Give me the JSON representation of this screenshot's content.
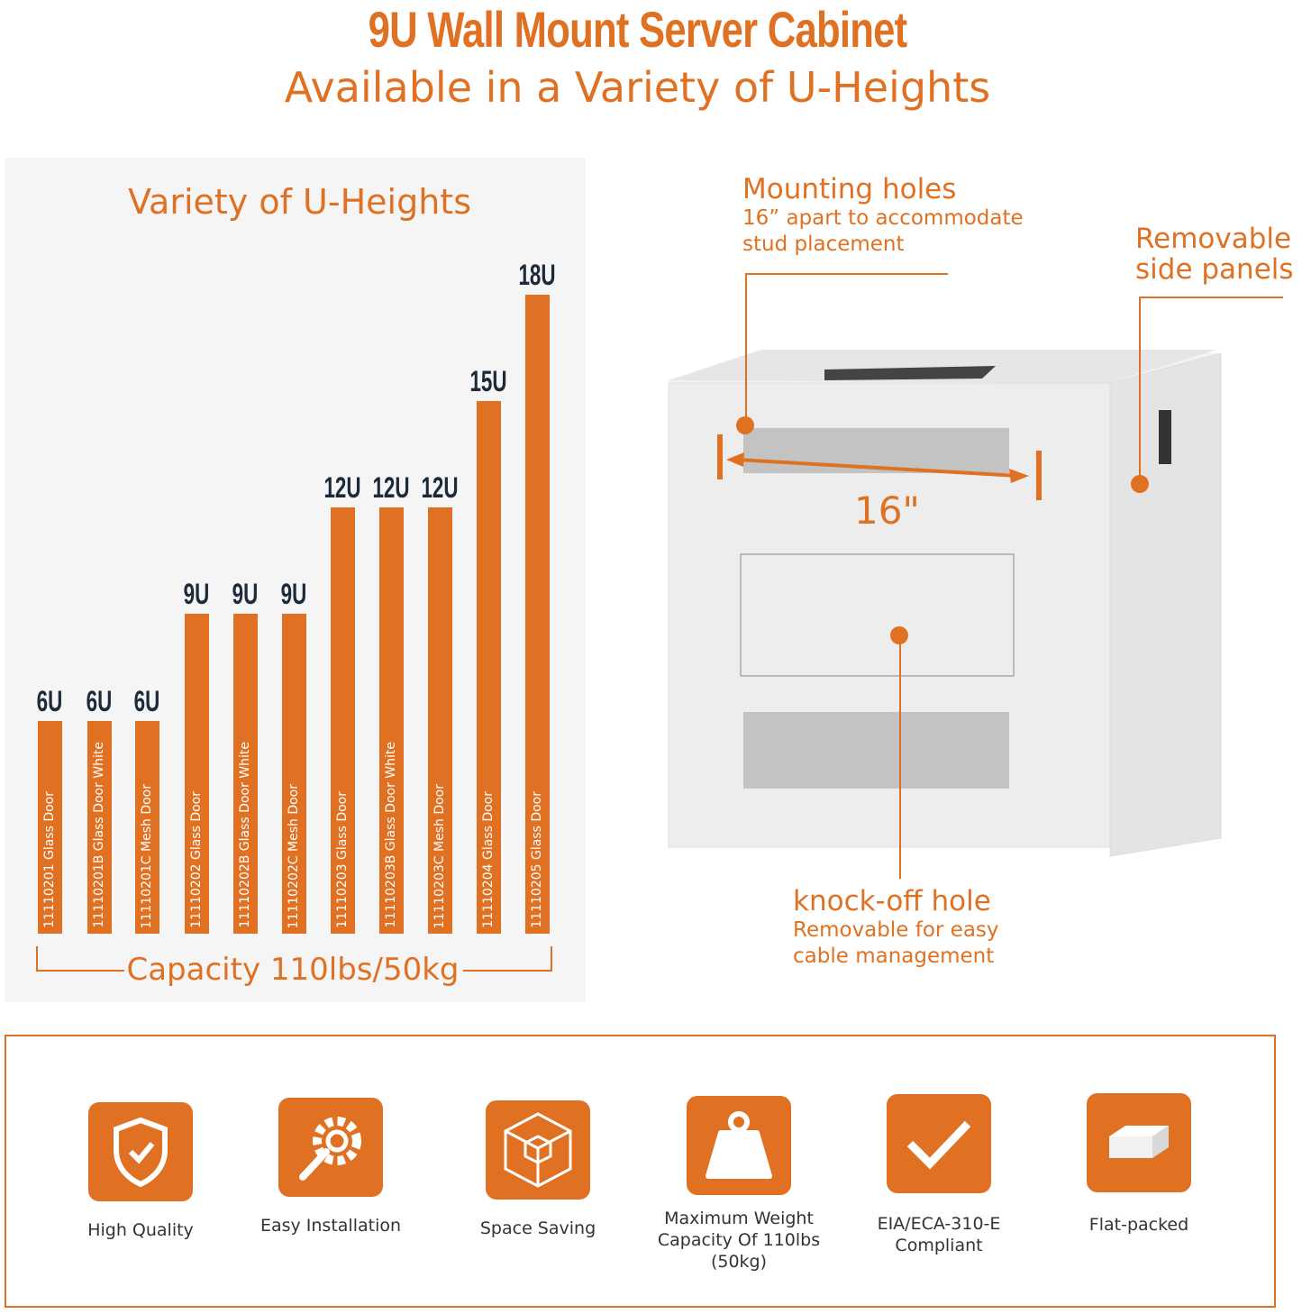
{
  "header": {
    "title": "9U Wall Mount Server Cabinet",
    "subtitle": "Available in a Variety of U-Heights"
  },
  "colors": {
    "accent": "#e07122",
    "label_dark": "#1c2a3a",
    "panel_bg": "#f5f5f5"
  },
  "chart_data": {
    "type": "bar",
    "title": "Variety of U-Heights",
    "categories": [
      "11110201 Glass Door",
      "11110201B Glass Door White",
      "11110201C Mesh Door",
      "11110202 Glass Door",
      "11110202B Glass Door White",
      "11110202C Mesh Door",
      "11110203 Glass Door",
      "11110203B Glass Door White",
      "11110203C Mesh Door",
      "11110204 Glass Door",
      "11110205 Glass Door"
    ],
    "values": [
      6,
      6,
      6,
      9,
      9,
      9,
      12,
      12,
      12,
      15,
      18
    ],
    "data_labels": [
      "6U",
      "6U",
      "6U",
      "9U",
      "9U",
      "9U",
      "12U",
      "12U",
      "12U",
      "15U",
      "18U"
    ],
    "unit": "U",
    "footer": "Capacity 110lbs/50kg",
    "ylim": [
      0,
      18
    ],
    "grid": false
  },
  "callouts": {
    "mounting": {
      "heading": "Mounting holes",
      "line1": "16” apart to accommodate",
      "line2": "stud placement"
    },
    "side": {
      "line1": "Removable",
      "line2": "side panels"
    },
    "dimension": "16\"",
    "knockoff": {
      "heading": "knock-off hole",
      "line1": "Removable for easy",
      "line2": "cable management"
    }
  },
  "features": [
    {
      "icon": "shield-check-icon",
      "line1": "High Quality",
      "line2": ""
    },
    {
      "icon": "gear-wrench-icon",
      "line1": "Easy Installation",
      "line2": ""
    },
    {
      "icon": "cube-icon",
      "line1": "Space Saving",
      "line2": ""
    },
    {
      "icon": "weight-icon",
      "line1": "Maximum Weight",
      "line2": "Capacity Of 110lbs (50kg)"
    },
    {
      "icon": "checkmark-icon",
      "line1": "EIA/ECA-310-E",
      "line2": "Compliant"
    },
    {
      "icon": "flat-box-icon",
      "line1": "Flat-packed",
      "line2": ""
    }
  ]
}
